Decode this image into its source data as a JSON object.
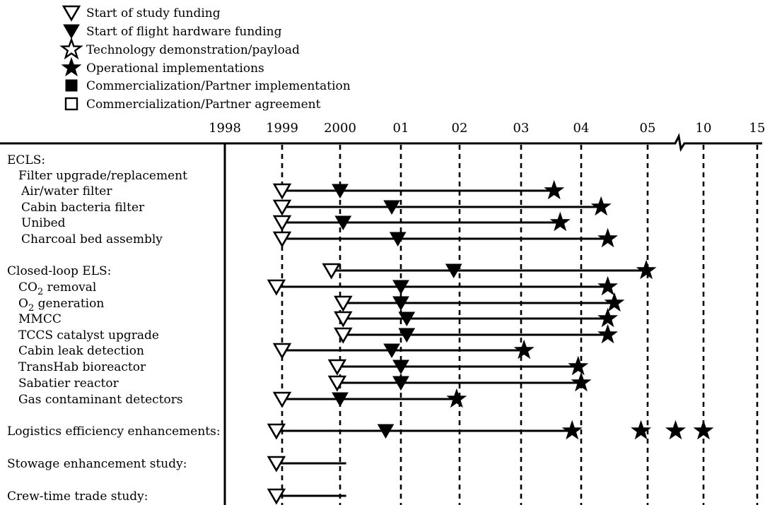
{
  "chart_data": {
    "type": "gantt",
    "title": "",
    "legend": {
      "placement": "top-left",
      "items": [
        {
          "symbol": "open-triangle",
          "label": "Start of study funding"
        },
        {
          "symbol": "filled-triangle",
          "label": "Start of flight hardware funding"
        },
        {
          "symbol": "open-star",
          "label": "Technology demonstration/payload"
        },
        {
          "symbol": "filled-star",
          "label": "Operational implementations"
        },
        {
          "symbol": "filled-square",
          "label": "Commercialization/Partner implementation"
        },
        {
          "symbol": "open-square",
          "label": "Commercialization/Partner agreement"
        }
      ]
    },
    "x_axis": {
      "ticks": [
        {
          "label": "1998",
          "value": 1998,
          "dashed": false
        },
        {
          "label": "1999",
          "value": 1999,
          "dashed": true
        },
        {
          "label": "2000",
          "value": 2000,
          "dashed": true
        },
        {
          "label": "01",
          "value": 2001,
          "dashed": true
        },
        {
          "label": "02",
          "value": 2002,
          "dashed": true
        },
        {
          "label": "03",
          "value": 2003,
          "dashed": true
        },
        {
          "label": "04",
          "value": 2004,
          "dashed": true
        },
        {
          "label": "05",
          "value": 2005,
          "dashed": true
        },
        {
          "label": "10",
          "value": 2010,
          "dashed": true
        },
        {
          "label": "15",
          "value": 2015,
          "dashed": true
        }
      ],
      "axis_break_between": [
        "05",
        "10"
      ]
    },
    "rows": [
      {
        "label": "ECLS:",
        "indent": 0,
        "kind": "header"
      },
      {
        "label": "Filter upgrade/replacement",
        "indent": 1,
        "kind": "header"
      },
      {
        "label": "Air/water filter",
        "indent": 2,
        "start": 1999.0,
        "end": 2003.55,
        "markers": [
          {
            "type": "open-triangle",
            "x": 1999.0
          },
          {
            "type": "filled-triangle",
            "x": 2000.0
          },
          {
            "type": "filled-star",
            "x": 2003.55
          }
        ]
      },
      {
        "label": "Cabin bacteria filter",
        "indent": 2,
        "start": 1999.0,
        "end": 2004.3,
        "markers": [
          {
            "type": "open-triangle",
            "x": 1999.0
          },
          {
            "type": "filled-triangle",
            "x": 2000.85
          },
          {
            "type": "filled-star",
            "x": 2004.3
          }
        ]
      },
      {
        "label": "Unibed",
        "indent": 2,
        "start": 1999.0,
        "end": 2003.65,
        "markers": [
          {
            "type": "open-triangle",
            "x": 1999.0
          },
          {
            "type": "filled-triangle",
            "x": 2000.05
          },
          {
            "type": "filled-star",
            "x": 2003.65
          }
        ]
      },
      {
        "label": "Charcoal bed assembly",
        "indent": 2,
        "start": 1999.0,
        "end": 2004.4,
        "markers": [
          {
            "type": "open-triangle",
            "x": 1999.0
          },
          {
            "type": "filled-triangle",
            "x": 2000.95
          },
          {
            "type": "filled-star",
            "x": 2004.4
          }
        ]
      },
      {
        "label": "Closed-loop ELS:",
        "indent": 0,
        "start": 1999.85,
        "end": 2004.98,
        "markers": [
          {
            "type": "open-triangle",
            "x": 1999.85
          },
          {
            "type": "filled-triangle",
            "x": 2001.9
          },
          {
            "type": "filled-star",
            "x": 2004.98
          }
        ]
      },
      {
        "label": "CO2 removal",
        "indent": 1,
        "label_parts": [
          "CO",
          "2",
          " removal"
        ],
        "start": 1998.9,
        "end": 2004.4,
        "markers": [
          {
            "type": "open-triangle",
            "x": 1998.9
          },
          {
            "type": "filled-triangle",
            "x": 2001.0
          },
          {
            "type": "filled-star",
            "x": 2004.4
          }
        ]
      },
      {
        "label": "O2 generation",
        "indent": 1,
        "label_parts": [
          "O",
          "2",
          " generation"
        ],
        "start": 2000.05,
        "end": 2004.5,
        "markers": [
          {
            "type": "open-triangle",
            "x": 2000.05
          },
          {
            "type": "filled-triangle",
            "x": 2001.0
          },
          {
            "type": "filled-star",
            "x": 2004.5
          }
        ]
      },
      {
        "label": "MMCC",
        "indent": 1,
        "start": 2000.05,
        "end": 2004.4,
        "markers": [
          {
            "type": "open-triangle",
            "x": 2000.05
          },
          {
            "type": "filled-triangle",
            "x": 2001.1
          },
          {
            "type": "filled-star",
            "x": 2004.4
          }
        ]
      },
      {
        "label": "TCCS catalyst upgrade",
        "indent": 1,
        "start": 2000.05,
        "end": 2004.4,
        "markers": [
          {
            "type": "open-triangle",
            "x": 2000.05
          },
          {
            "type": "filled-triangle",
            "x": 2001.1
          },
          {
            "type": "filled-star",
            "x": 2004.4
          }
        ]
      },
      {
        "label": "Cabin leak detection",
        "indent": 1,
        "start": 1999.0,
        "end": 2003.05,
        "markers": [
          {
            "type": "open-triangle",
            "x": 1999.0
          },
          {
            "type": "filled-triangle",
            "x": 2000.85
          },
          {
            "type": "filled-star",
            "x": 2003.05
          }
        ]
      },
      {
        "label": "TransHab bioreactor",
        "indent": 1,
        "start": 1999.95,
        "end": 2003.95,
        "markers": [
          {
            "type": "open-triangle",
            "x": 1999.95
          },
          {
            "type": "filled-triangle",
            "x": 2001.0
          },
          {
            "type": "filled-star",
            "x": 2003.95
          }
        ]
      },
      {
        "label": "Sabatier reactor",
        "indent": 1,
        "start": 1999.95,
        "end": 2004.0,
        "markers": [
          {
            "type": "open-triangle",
            "x": 1999.95
          },
          {
            "type": "filled-triangle",
            "x": 2001.0
          },
          {
            "type": "filled-star",
            "x": 2004.0
          }
        ]
      },
      {
        "label": "Gas contaminant detectors",
        "indent": 1,
        "start": 1999.0,
        "end": 2001.95,
        "markers": [
          {
            "type": "open-triangle",
            "x": 1999.0
          },
          {
            "type": "filled-triangle",
            "x": 2000.0
          },
          {
            "type": "filled-star",
            "x": 2001.95
          }
        ]
      },
      {
        "label": "Logistics efficiency enhancements:",
        "indent": 0,
        "start": 1998.9,
        "end": 2003.85,
        "markers": [
          {
            "type": "open-triangle",
            "x": 1998.9
          },
          {
            "type": "filled-triangle",
            "x": 2000.75
          },
          {
            "type": "filled-star",
            "x": 2003.85
          },
          {
            "type": "filled-star",
            "x": 2004.9
          },
          {
            "type": "filled-star",
            "x": 2007.5
          },
          {
            "type": "filled-star",
            "x": 2010.0
          }
        ]
      },
      {
        "label": "Stowage enhancement study:",
        "indent": 0,
        "start": 1998.9,
        "end": 2000.1,
        "markers": [
          {
            "type": "open-triangle",
            "x": 1998.9
          }
        ]
      },
      {
        "label": "Crew-time trade study:",
        "indent": 0,
        "start": 1998.9,
        "end": 2000.1,
        "markers": [
          {
            "type": "open-triangle",
            "x": 1998.9
          }
        ]
      }
    ]
  }
}
